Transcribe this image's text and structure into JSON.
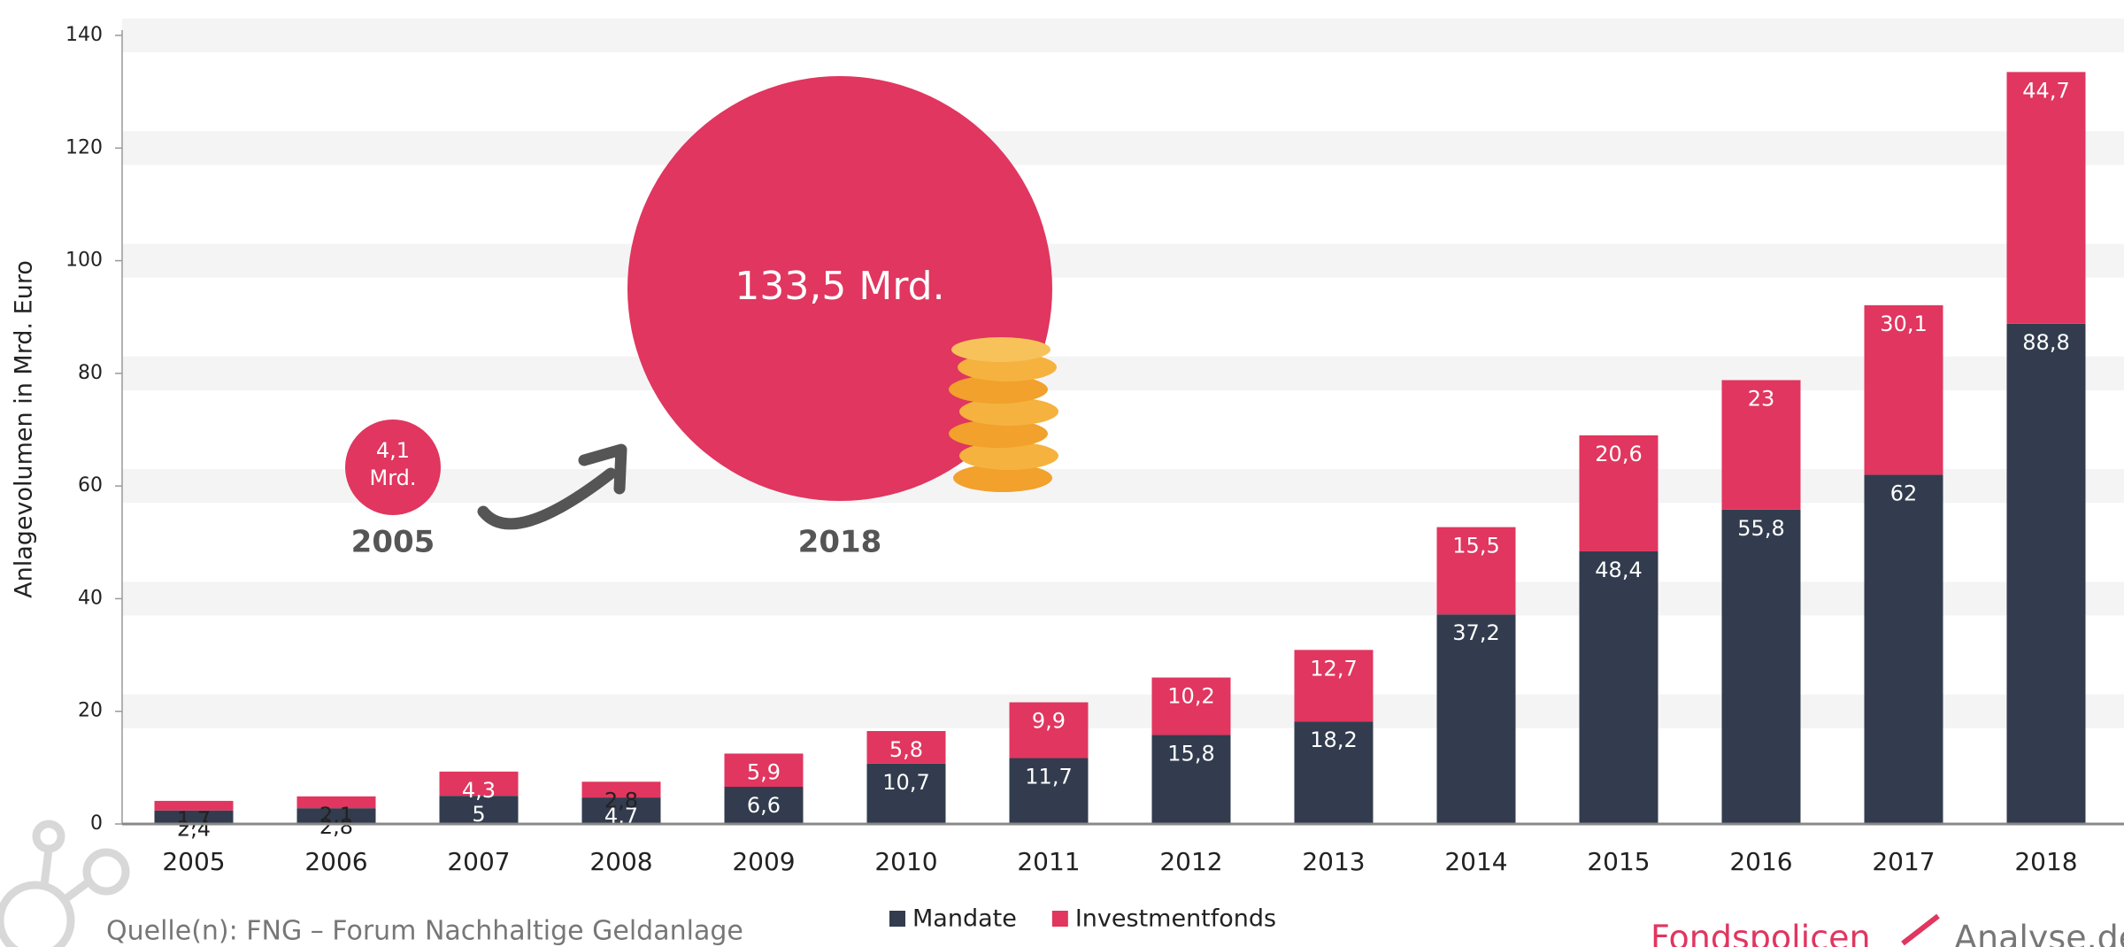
{
  "chart_data": {
    "type": "stacked_bar",
    "y_label": "Anlagevolumen in Mrd. Euro",
    "categories": [
      "2005",
      "2006",
      "2007",
      "2008",
      "2009",
      "2010",
      "2011",
      "2012",
      "2013",
      "2014",
      "2015",
      "2016",
      "2017",
      "2018"
    ],
    "series": [
      {
        "name": "Mandate",
        "color": "#323c4e",
        "values": [
          2.4,
          2.8,
          5,
          4.7,
          6.6,
          10.7,
          11.7,
          15.8,
          18.2,
          37.2,
          48.4,
          55.8,
          62,
          88.8
        ],
        "value_labels": [
          "2,4",
          "2,8",
          "5",
          "4,7",
          "6,6",
          "10,7",
          "11,7",
          "15,8",
          "18,2",
          "37,2",
          "48,4",
          "55,8",
          "62",
          "88,8"
        ]
      },
      {
        "name": "Investmentfonds",
        "color": "#e0365f",
        "values": [
          1.7,
          2.1,
          4.3,
          2.8,
          5.9,
          5.8,
          9.9,
          10.2,
          12.7,
          15.5,
          20.6,
          23,
          30.1,
          44.7
        ],
        "value_labels": [
          "1,7",
          "2,1",
          "4,3",
          "2,8",
          "5,9",
          "5,8",
          "9,9",
          "10,2",
          "12,7",
          "15,5",
          "20,6",
          "23",
          "30,1",
          "44,7"
        ]
      }
    ],
    "ylim": [
      0,
      140
    ],
    "yticks": [
      0,
      20,
      40,
      60,
      80,
      100,
      120,
      140
    ],
    "grid": true,
    "legend": "bottom",
    "annotations": {
      "start_value": "4,1",
      "start_unit": "Mrd.",
      "start_year": "2005",
      "end_value": "133,5 Mrd.",
      "end_year": "2018"
    },
    "source": "Quelle(n): FNG – Forum Nachhaltige Geldanlage",
    "logo": [
      "Fondspolicen",
      "Analyse.de"
    ]
  }
}
